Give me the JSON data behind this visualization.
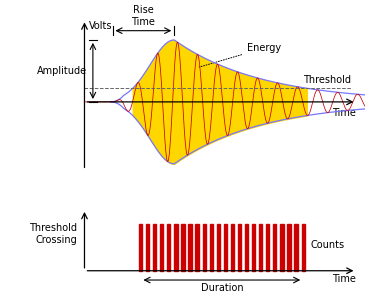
{
  "fig_width": 3.84,
  "fig_height": 3.04,
  "dpi": 100,
  "bg_color": "#ffffff",
  "top_ax": {
    "xlim": [
      0,
      10
    ],
    "ylim": [
      -1.3,
      1.4
    ],
    "threshold": 0.22,
    "peak_x": 3.2,
    "start_x": 1.0,
    "sigma_rise": 0.85,
    "decay_rate": 0.32,
    "wave_freq": 14.0,
    "envelope_color": "#7777ff",
    "fill_color": "#FFD700",
    "wave_color": "#cc0000",
    "threshold_color": "#666666",
    "axis_color": "#000000"
  },
  "bot_ax": {
    "xlim": [
      0,
      10
    ],
    "ylim": [
      -0.35,
      1.3
    ],
    "counts_start_x": 2.0,
    "counts_end_x": 7.8,
    "bar_height": 0.9,
    "n_counts": 24,
    "counts_color": "#cc0000",
    "axis_color": "#000000"
  },
  "labels": {
    "volts": "Volts",
    "time_top": "Time",
    "time_bot": "Time",
    "amplitude": "Amplitude",
    "rise_time": "Rise\nTime",
    "energy": "Energy",
    "threshold": "Threshold",
    "threshold_crossing": "Threshold\nCrossing",
    "counts": "Counts",
    "duration": "Duration"
  },
  "font_color": "#000000",
  "font_size": 7.0
}
